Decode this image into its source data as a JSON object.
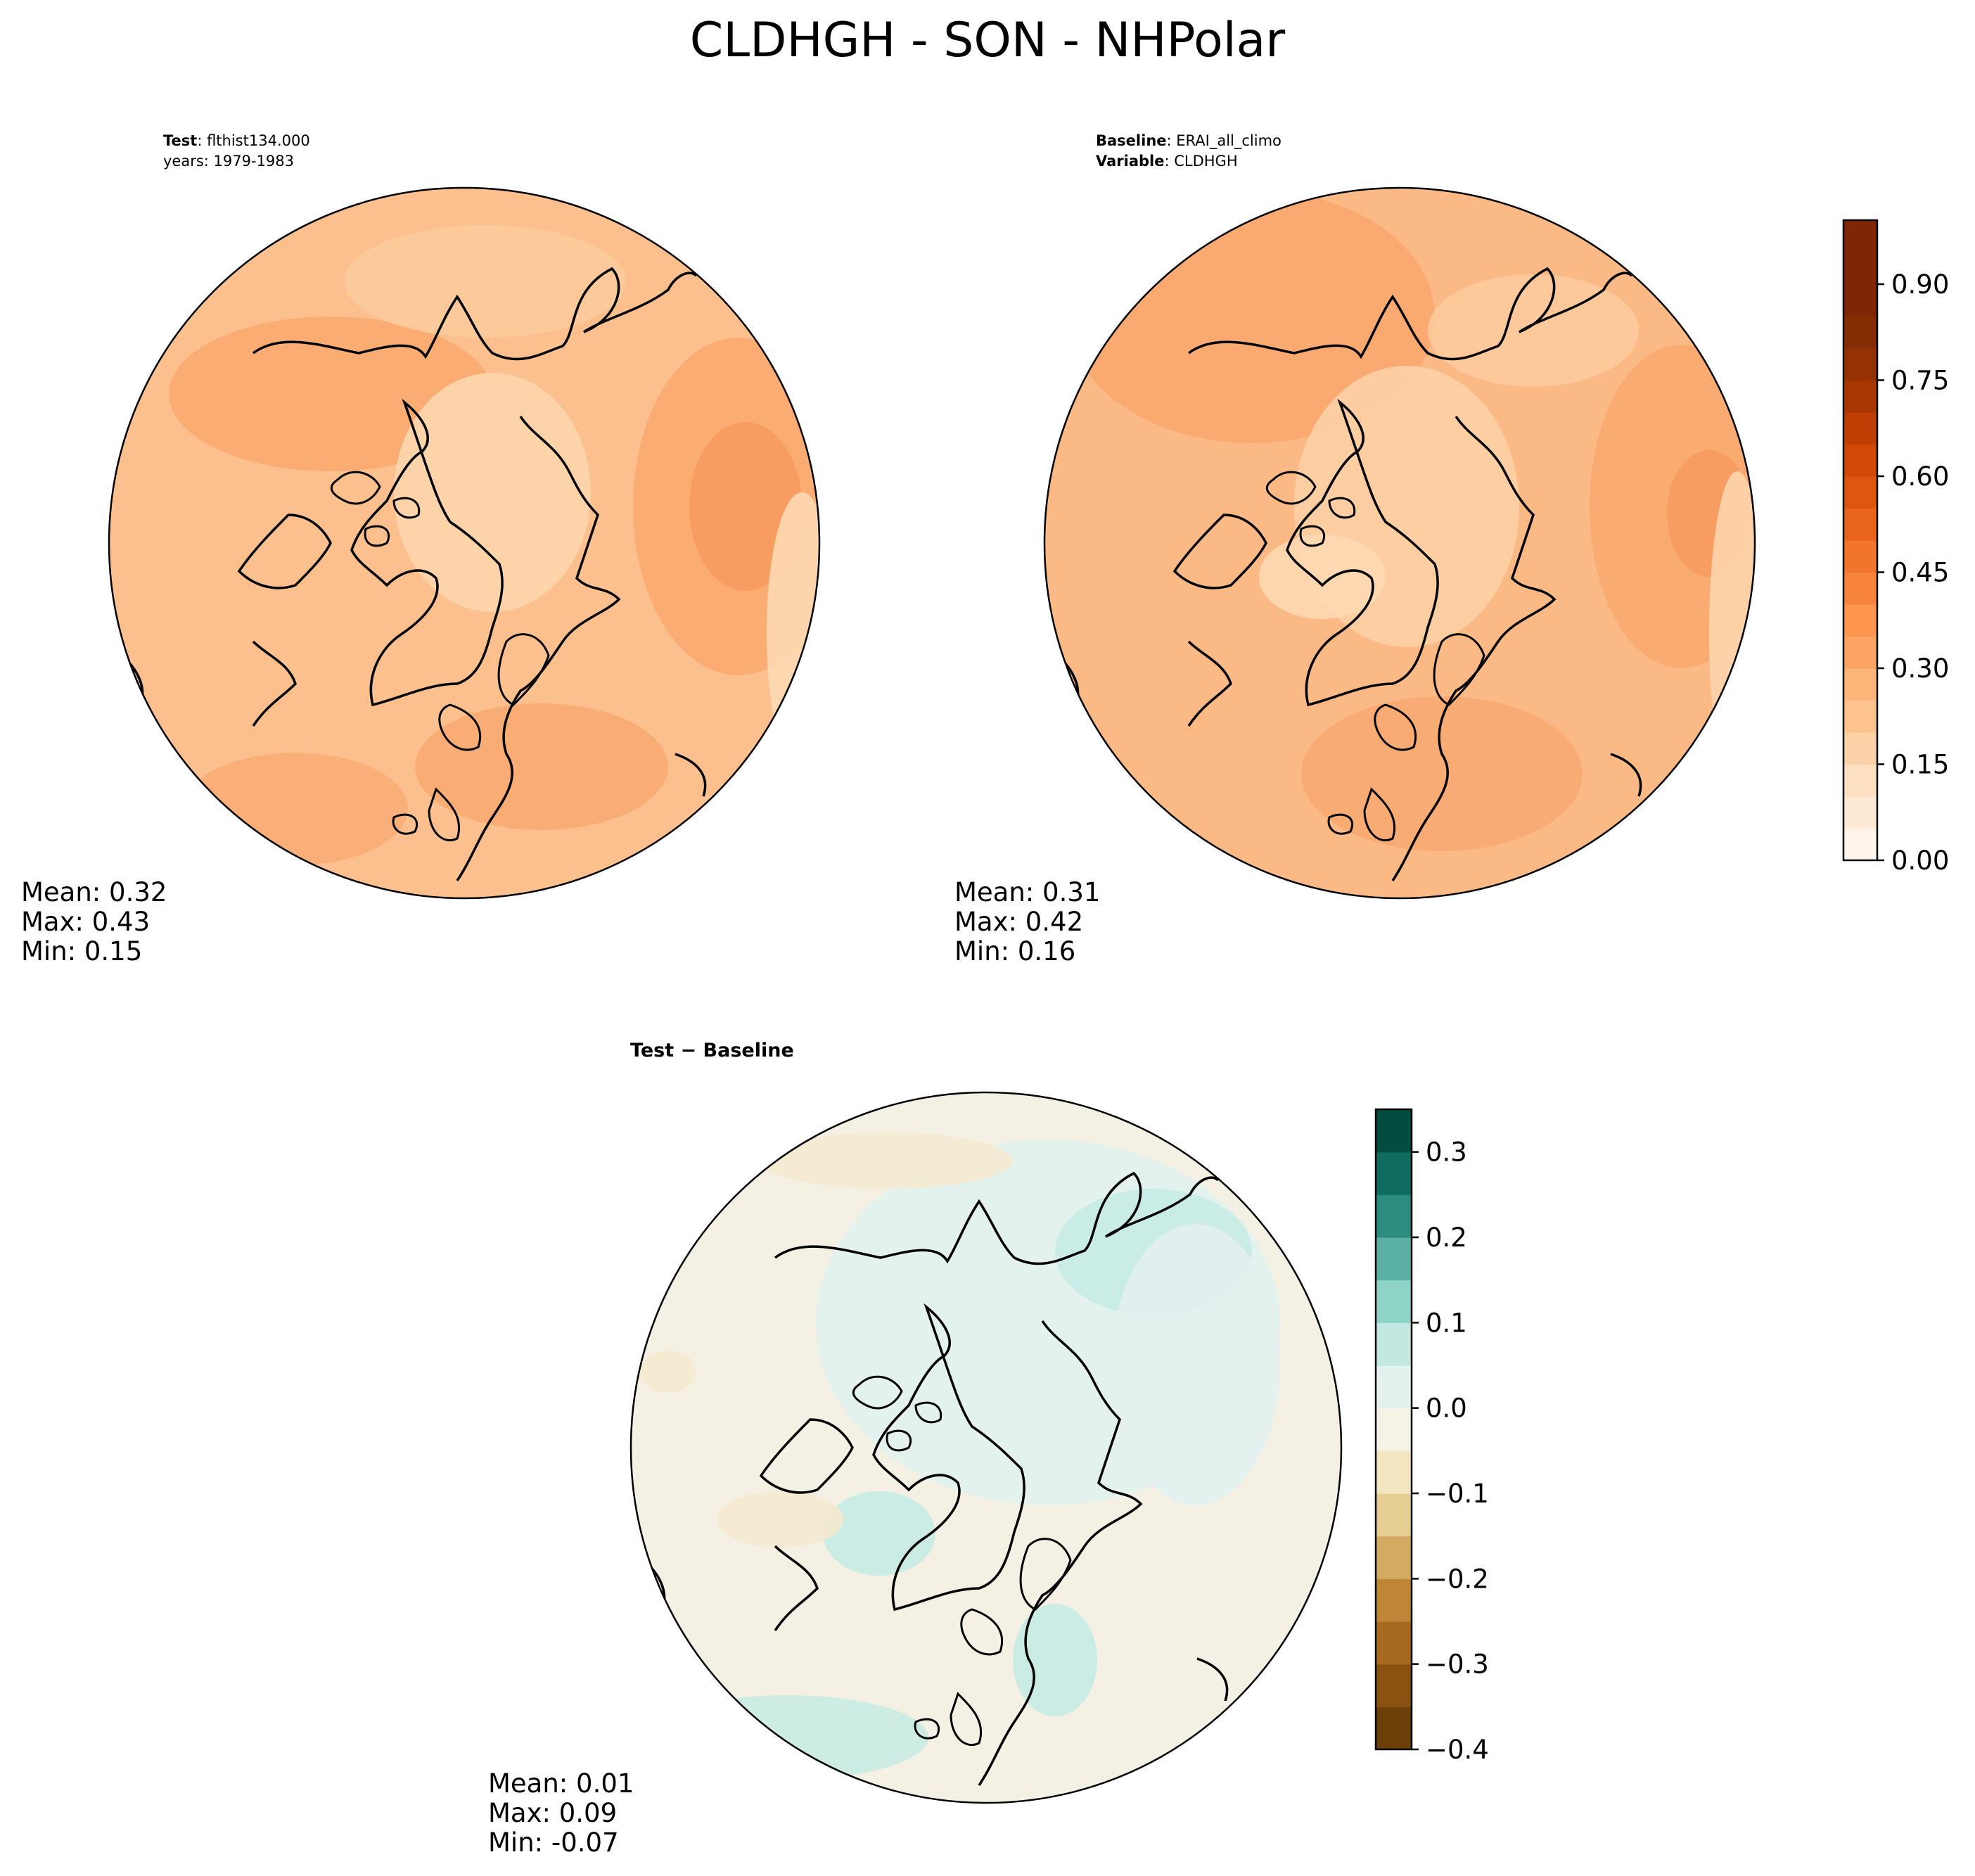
{
  "figure": {
    "title": "CLDHGH - SON - NHPolar"
  },
  "panels": [
    {
      "id": "test",
      "header_line1_label": "Test",
      "header_line1_value": ": flthist134.000",
      "header_line2": "years: 1979-1983",
      "stats": {
        "mean": "Mean:  0.32",
        "max": "Max:  0.43",
        "min": "Min:  0.15"
      },
      "field_levels": [
        {
          "level": 0.3,
          "color": "#fbb985"
        },
        {
          "level": 0.35,
          "color": "#f9a86f"
        },
        {
          "level": 0.4,
          "color": "#f89a5c"
        },
        {
          "level": 0.25,
          "color": "#fdcb9e"
        },
        {
          "level": 0.2,
          "color": "#fddab7"
        }
      ]
    },
    {
      "id": "baseline",
      "header_line1_label": "Baseline",
      "header_line1_value": ": ERAI_all_climo",
      "header_line2_label": "Variable",
      "header_line2_value": ": CLDHGH",
      "stats": {
        "mean": "Mean:  0.31",
        "max": "Max:  0.42",
        "min": "Min:  0.16"
      },
      "field_levels": [
        {
          "level": 0.3,
          "color": "#fbb985"
        },
        {
          "level": 0.35,
          "color": "#f9a86f"
        },
        {
          "level": 0.4,
          "color": "#f89a5c"
        },
        {
          "level": 0.25,
          "color": "#fdcb9e"
        },
        {
          "level": 0.2,
          "color": "#fddab7"
        }
      ]
    },
    {
      "id": "diff",
      "header_line1_label": "Test",
      "header_line1_value": " − Baseline",
      "stats": {
        "mean": "Mean:  0.01",
        "max": "Max:  0.09",
        "min": "Min: -0.07"
      },
      "field_levels": [
        {
          "level": 0.0,
          "color": "#f4f1e4"
        },
        {
          "level": 0.025,
          "color": "#e3f1ee"
        },
        {
          "level": 0.075,
          "color": "#c6ebe4"
        },
        {
          "level": -0.025,
          "color": "#f5ead0"
        }
      ]
    }
  ],
  "colorbars": [
    {
      "id": "main-colorbar",
      "vmin": 0.0,
      "vmax": 1.0,
      "tick_values": [
        0.0,
        0.15,
        0.3,
        0.45,
        0.6,
        0.75,
        0.9
      ],
      "tick_labels": [
        "0.00",
        "0.15",
        "0.30",
        "0.45",
        "0.60",
        "0.75",
        "0.90"
      ],
      "colors": [
        "#fff5eb",
        "#fee9d5",
        "#fddfc2",
        "#fdd2a8",
        "#fdc38f",
        "#fdb478",
        "#fca461",
        "#fd954e",
        "#f8843c",
        "#f1752b",
        "#ea641c",
        "#df560f",
        "#d14807",
        "#be3e03",
        "#a93703",
        "#963103",
        "#842c03",
        "#7f2704",
        "#7f2704",
        "#7f2704"
      ]
    },
    {
      "id": "diff-colorbar",
      "vmin": -0.4,
      "vmax": 0.35,
      "tick_values": [
        -0.4,
        -0.3,
        -0.2,
        -0.1,
        0.0,
        0.1,
        0.2,
        0.3
      ],
      "tick_labels": [
        "−0.4",
        "−0.3",
        "−0.2",
        "−0.1",
        "0.0",
        "0.1",
        "0.2",
        "0.3"
      ],
      "colors": [
        "#6b3f07",
        "#8a5210",
        "#a86a20",
        "#bf8636",
        "#d4aa62",
        "#e6cf93",
        "#f3e6c1",
        "#f5f2e6",
        "#e4f2ef",
        "#c2e8e1",
        "#8fd3c6",
        "#5bb0a4",
        "#2c8c80",
        "#0f6c60",
        "#004c40"
      ]
    }
  ]
}
